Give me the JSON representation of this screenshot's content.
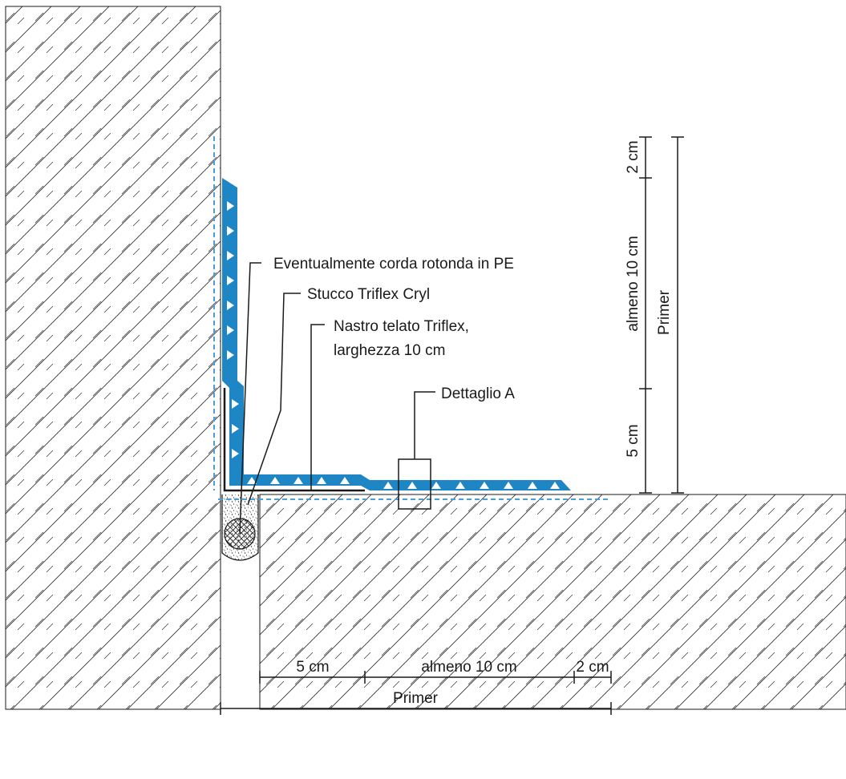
{
  "colors": {
    "membrane": "#1f86c6",
    "primer_line": "#4a9fd8",
    "hatch": "#333333",
    "line": "#1a1a1a"
  },
  "labels": {
    "rope": "Eventualmente corda rotonda in PE",
    "filler": "Stucco Triflex Cryl",
    "fleece_line1": "Nastro telato Triflex,",
    "fleece_line2": "larghezza 10 cm",
    "detail": "Dettaglio A"
  },
  "vertical_dims": {
    "top": "2 cm",
    "middle": "almeno 10 cm",
    "bottom": "5 cm",
    "primer": "Primer"
  },
  "horizontal_dims": {
    "left": "5 cm",
    "middle": "almeno 10 cm",
    "right": "2 cm",
    "primer": "Primer"
  }
}
